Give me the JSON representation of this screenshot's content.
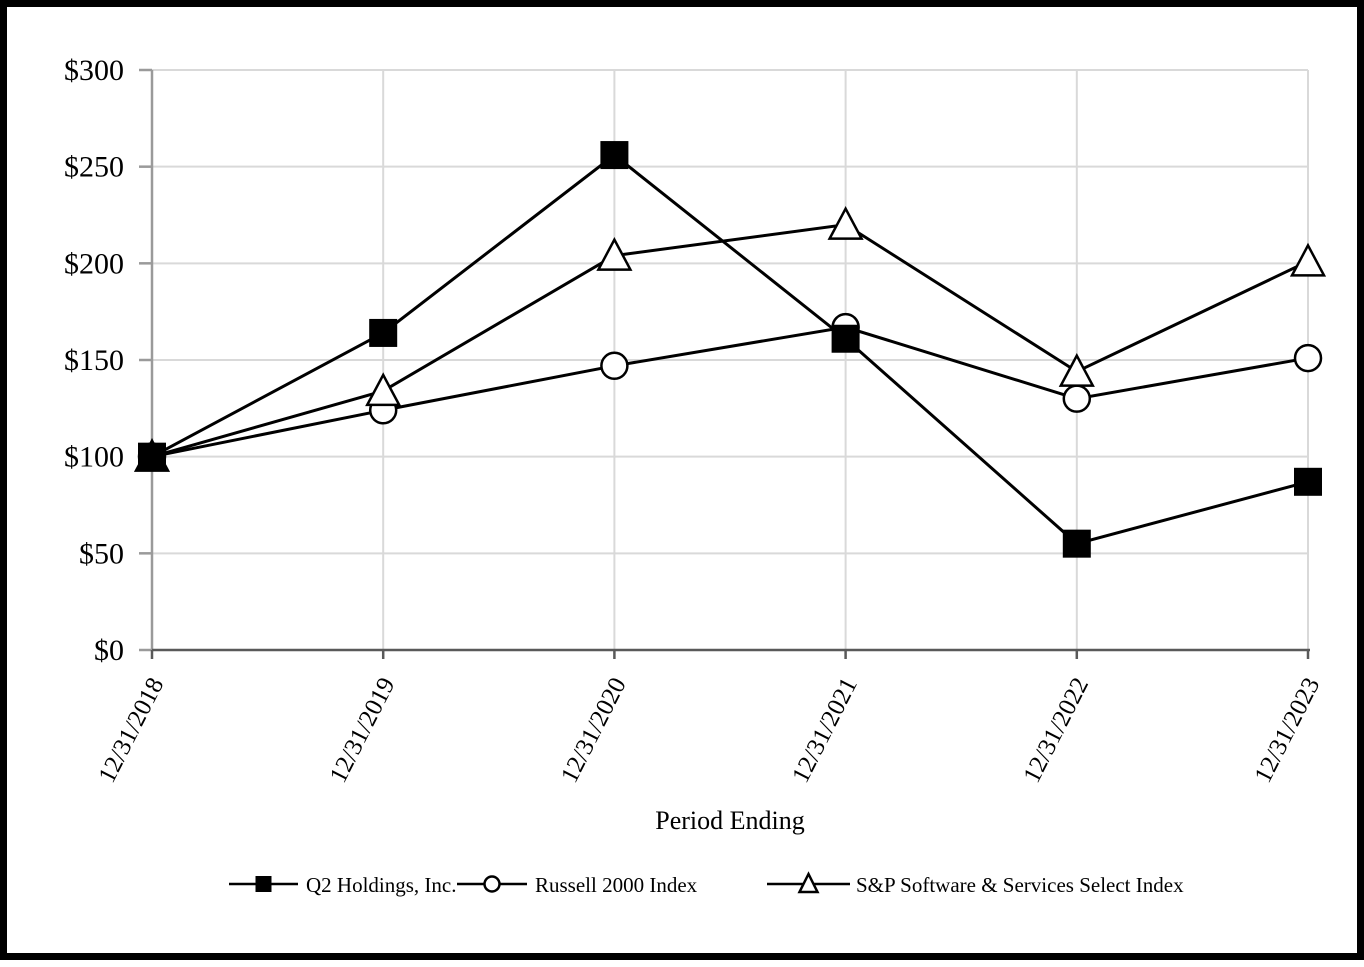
{
  "chart_data": {
    "type": "line",
    "title": "",
    "xlabel": "Period Ending",
    "ylabel": "",
    "categories": [
      "12/31/2018",
      "12/31/2019",
      "12/31/2020",
      "12/31/2021",
      "12/31/2022",
      "12/31/2023"
    ],
    "series": [
      {
        "name": "Q2 Holdings, Inc.",
        "marker": "square",
        "values": [
          100,
          164,
          256,
          161,
          55,
          87
        ]
      },
      {
        "name": "Russell 2000 Index",
        "marker": "circle",
        "values": [
          100,
          124,
          147,
          167,
          130,
          151
        ]
      },
      {
        "name": "S&P Software & Services Select Index",
        "marker": "triangle",
        "values": [
          100,
          134,
          204,
          220,
          144,
          201
        ]
      }
    ],
    "ylim": [
      0,
      300
    ],
    "ytick_step": 50,
    "ytick_labels": [
      "$0",
      "$50",
      "$100",
      "$150",
      "$200",
      "$250",
      "$300"
    ],
    "grid": true,
    "legend_position": "bottom",
    "colors": {
      "series_stroke": "#000000",
      "marker_fill_open": "#ffffff",
      "gridline": "#d9d9d9",
      "y_axis": "#9a9a9a",
      "x_axis": "#595959",
      "frame_border": "#000000",
      "background": "#ffffff"
    }
  }
}
